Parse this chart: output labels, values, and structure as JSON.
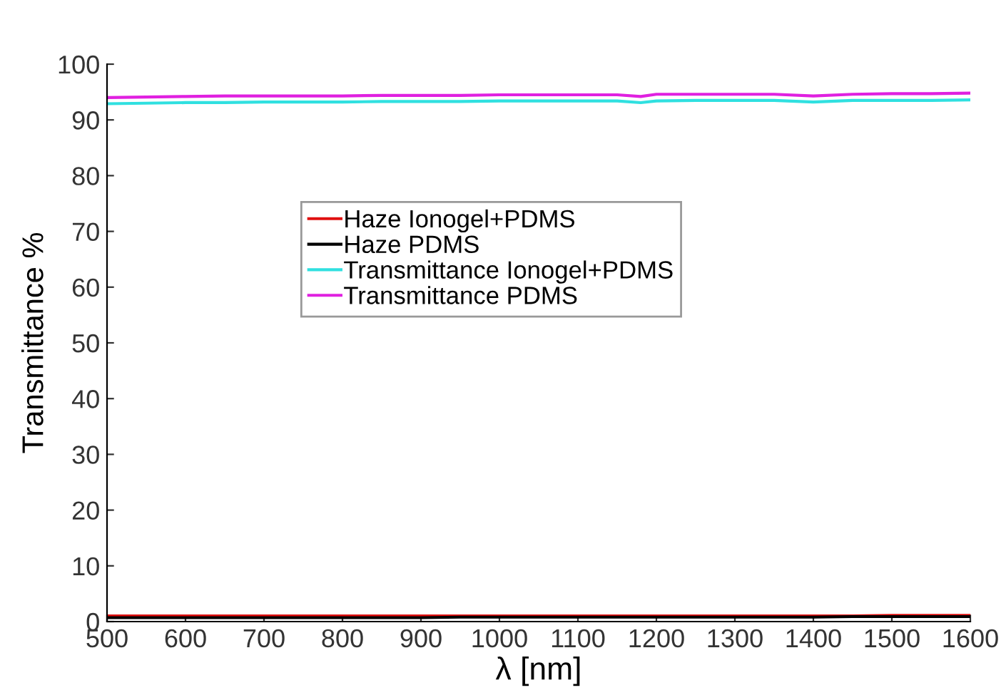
{
  "chart_data": {
    "type": "line",
    "xlabel": "λ [nm]",
    "ylabel": "Transmittance %",
    "x": [
      500,
      550,
      600,
      650,
      700,
      750,
      800,
      850,
      900,
      950,
      1000,
      1050,
      1100,
      1150,
      1180,
      1200,
      1250,
      1300,
      1350,
      1400,
      1450,
      1500,
      1550,
      1600
    ],
    "series": [
      {
        "name": "Haze Ionogel+PDMS",
        "color": "#e01010",
        "values": [
          1.0,
          1.0,
          1.0,
          1.0,
          1.0,
          1.0,
          1.0,
          1.0,
          1.0,
          1.0,
          1.0,
          1.0,
          1.0,
          1.0,
          1.0,
          1.0,
          1.0,
          1.0,
          1.0,
          1.0,
          1.0,
          1.1,
          1.1,
          1.1
        ]
      },
      {
        "name": "Haze PDMS",
        "color": "#000000",
        "values": [
          0.7,
          0.7,
          0.7,
          0.7,
          0.7,
          0.7,
          0.7,
          0.7,
          0.7,
          0.8,
          0.8,
          0.8,
          0.8,
          0.8,
          0.8,
          0.8,
          0.8,
          0.8,
          0.8,
          0.8,
          0.9,
          0.9,
          0.9,
          0.9
        ]
      },
      {
        "name": "Transmittance Ionogel+PDMS",
        "color": "#30e0e0",
        "values": [
          92.9,
          93.0,
          93.1,
          93.1,
          93.2,
          93.2,
          93.2,
          93.3,
          93.3,
          93.3,
          93.4,
          93.4,
          93.4,
          93.4,
          93.1,
          93.4,
          93.5,
          93.5,
          93.5,
          93.2,
          93.5,
          93.5,
          93.5,
          93.6
        ]
      },
      {
        "name": "Transmittance PDMS",
        "color": "#e020e0",
        "values": [
          94.0,
          94.1,
          94.2,
          94.3,
          94.3,
          94.3,
          94.3,
          94.4,
          94.4,
          94.4,
          94.5,
          94.5,
          94.5,
          94.5,
          94.2,
          94.6,
          94.6,
          94.6,
          94.6,
          94.3,
          94.6,
          94.7,
          94.7,
          94.8
        ]
      }
    ],
    "xlim": [
      500,
      1600
    ],
    "ylim": [
      0,
      100
    ],
    "xticks": [
      500,
      600,
      700,
      800,
      900,
      1000,
      1100,
      1200,
      1300,
      1400,
      1500,
      1600
    ],
    "yticks": [
      0,
      10,
      20,
      30,
      40,
      50,
      60,
      70,
      80,
      90,
      100
    ],
    "grid": false,
    "legend": "center",
    "line_style": "solid",
    "marker": "none"
  }
}
